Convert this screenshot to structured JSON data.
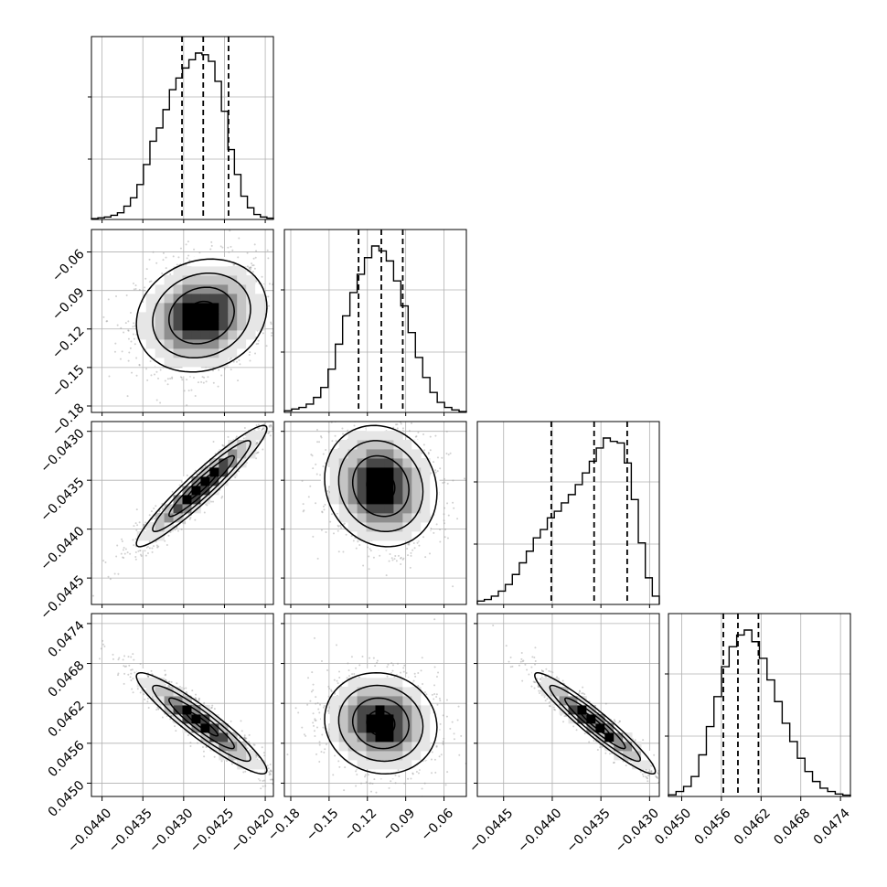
{
  "chart_data": {
    "type": "corner",
    "parameters": 4,
    "axes": [
      {
        "ticks": [
          -0.044,
          -0.0435,
          -0.043,
          -0.0425,
          -0.042
        ],
        "tick_labels": [
          "−0.0440",
          "−0.0435",
          "−0.0430",
          "−0.0425",
          "−0.0420"
        ],
        "range": [
          -0.04413,
          -0.0419
        ],
        "quantiles": [
          -0.04302,
          -0.04276,
          -0.04245
        ],
        "hist": [
          0.005,
          0.01,
          0.015,
          0.025,
          0.04,
          0.08,
          0.13,
          0.21,
          0.33,
          0.47,
          0.55,
          0.66,
          0.78,
          0.85,
          0.91,
          0.96,
          1.0,
          0.99,
          0.95,
          0.83,
          0.65,
          0.42,
          0.27,
          0.14,
          0.07,
          0.03,
          0.015,
          0.008
        ]
      },
      {
        "ticks": [
          -0.18,
          -0.15,
          -0.12,
          -0.09,
          -0.06
        ],
        "tick_labels": [
          "−0.18",
          "−0.15",
          "−0.12",
          "−0.09",
          "−0.06"
        ],
        "range": [
          -0.185,
          -0.0425
        ],
        "quantiles": [
          -0.1269,
          -0.1091,
          -0.0923
        ],
        "hist": [
          0.01,
          0.02,
          0.03,
          0.05,
          0.09,
          0.15,
          0.26,
          0.41,
          0.58,
          0.72,
          0.83,
          0.93,
          1.0,
          0.97,
          0.91,
          0.79,
          0.64,
          0.48,
          0.33,
          0.21,
          0.12,
          0.06,
          0.03,
          0.015,
          0.005
        ]
      },
      {
        "ticks": [
          -0.0445,
          -0.044,
          -0.0435,
          -0.043
        ],
        "tick_labels": [
          "−0.0445",
          "−0.0440",
          "−0.0435",
          "−0.0430"
        ],
        "range": [
          -0.04477,
          -0.0429
        ],
        "quantiles": [
          -0.04401,
          -0.04357,
          -0.04323
        ],
        "hist": [
          0.02,
          0.03,
          0.05,
          0.08,
          0.12,
          0.18,
          0.25,
          0.32,
          0.4,
          0.45,
          0.52,
          0.56,
          0.61,
          0.66,
          0.72,
          0.79,
          0.86,
          0.94,
          1.0,
          0.98,
          0.97,
          0.85,
          0.63,
          0.37,
          0.16,
          0.05
        ]
      },
      {
        "ticks": [
          0.045,
          0.0456,
          0.0462,
          0.0468,
          0.0474
        ],
        "tick_labels": [
          "0.0450",
          "0.0456",
          "0.0462",
          "0.0468",
          "0.0474"
        ],
        "range": [
          0.0448,
          0.04755
        ],
        "quantiles": [
          0.04563,
          0.04585,
          0.04616
        ],
        "hist": [
          0.01,
          0.03,
          0.06,
          0.12,
          0.25,
          0.42,
          0.6,
          0.78,
          0.9,
          0.97,
          1.0,
          0.93,
          0.83,
          0.7,
          0.57,
          0.44,
          0.33,
          0.23,
          0.15,
          0.09,
          0.05,
          0.03,
          0.015,
          0.008
        ]
      }
    ],
    "pairs": [
      {
        "row": 1,
        "col": 0,
        "mean": [
          -0.04278,
          -0.1095
        ],
        "sd": [
          0.0004,
          0.022
        ],
        "rho": 0.15
      },
      {
        "row": 2,
        "col": 0,
        "mean": [
          -0.04278,
          -0.04356
        ],
        "sd": [
          0.0004,
          0.00031
        ],
        "rho": 0.95
      },
      {
        "row": 2,
        "col": 1,
        "mean": [
          -0.1095,
          -0.04356
        ],
        "sd": [
          0.022,
          0.00031
        ],
        "rho": -0.12
      },
      {
        "row": 3,
        "col": 0,
        "mean": [
          -0.04278,
          0.0459
        ],
        "sd": [
          0.0004,
          0.00038
        ],
        "rho": -0.93
      },
      {
        "row": 3,
        "col": 1,
        "mean": [
          -0.1095,
          0.0459
        ],
        "sd": [
          0.022,
          0.00038
        ],
        "rho": -0.08
      },
      {
        "row": 3,
        "col": 2,
        "mean": [
          -0.04356,
          0.0459
        ],
        "sd": [
          0.00031,
          0.00038
        ],
        "rho": -0.95
      }
    ],
    "contour_levels_sigma": [
      0.5,
      1.0,
      1.5,
      2.0
    ],
    "quantile_line_style": "dashed",
    "grid": true
  },
  "colors": {
    "hist_line": "#000000",
    "quantile_line": "#000000",
    "contour_line": "#000000",
    "scatter_point": "#9a9a9a",
    "grid": "#b0b0b0",
    "fill_ramp": [
      "#ffffff",
      "#e6e6e6",
      "#c4c4c4",
      "#8e8e8e",
      "#474747",
      "#000000"
    ]
  }
}
